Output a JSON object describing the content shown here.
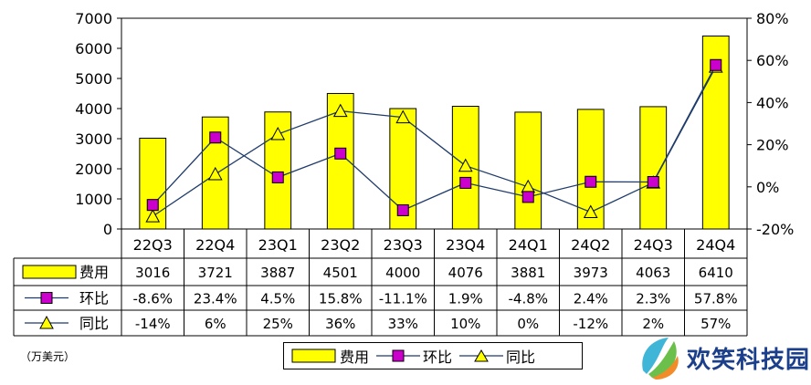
{
  "chart_data": {
    "type": "bar",
    "categories": [
      "22Q3",
      "22Q4",
      "23Q1",
      "23Q2",
      "23Q3",
      "23Q4",
      "24Q1",
      "24Q2",
      "24Q3",
      "24Q4"
    ],
    "series": [
      {
        "name": "费用",
        "kind": "bar",
        "axis": "left",
        "color": "#ffff00",
        "values": [
          3016,
          3721,
          3887,
          4501,
          4000,
          4076,
          3881,
          3973,
          4063,
          6410
        ],
        "labels": [
          "3016",
          "3721",
          "3887",
          "4501",
          "4000",
          "4076",
          "3881",
          "3973",
          "4063",
          "6410"
        ]
      },
      {
        "name": "环比",
        "kind": "line",
        "axis": "right",
        "marker": "square",
        "color": "#cc00cc",
        "values": [
          -8.6,
          23.4,
          4.5,
          15.8,
          -11.1,
          1.9,
          -4.8,
          2.4,
          2.3,
          57.8
        ],
        "labels": [
          "-8.6%",
          "23.4%",
          "4.5%",
          "15.8%",
          "-11.1%",
          "1.9%",
          "-4.8%",
          "2.4%",
          "2.3%",
          "57.8%"
        ]
      },
      {
        "name": "同比",
        "kind": "line",
        "axis": "right",
        "marker": "triangle",
        "color": "#ffff00",
        "values": [
          -14,
          6,
          25,
          36,
          33,
          10,
          0,
          -12,
          2,
          57
        ],
        "labels": [
          "-14%",
          "6%",
          "25%",
          "36%",
          "33%",
          "10%",
          "0%",
          "-12%",
          "2%",
          "57%"
        ]
      }
    ],
    "ylim_left": [
      0,
      7000
    ],
    "yticks_left": [
      "7000",
      "6000",
      "5000",
      "4000",
      "3000",
      "2000",
      "1000",
      "0"
    ],
    "ylim_right": [
      -20,
      80
    ],
    "yticks_right": [
      "80%",
      "60%",
      "40%",
      "20%",
      "0%",
      "-20%"
    ],
    "grid": false,
    "legend": "bottom-center"
  },
  "unit_label": "（万美元）",
  "watermark": "欢笑科技园"
}
